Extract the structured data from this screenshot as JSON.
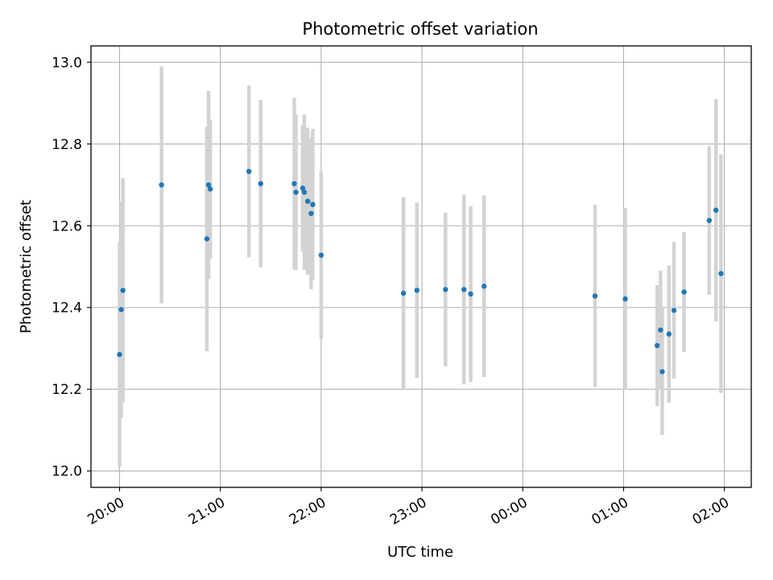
{
  "chart_data": {
    "type": "scatter",
    "title": "Photometric offset variation",
    "xlabel": "UTC time",
    "ylabel": "Photometric offset",
    "x_ticks": [
      "20:00",
      "21:00",
      "22:00",
      "23:00",
      "00:00",
      "01:00",
      "02:00"
    ],
    "y_ticks": [
      "12.0",
      "12.2",
      "12.4",
      "12.6",
      "12.8",
      "13.0"
    ],
    "xlim": [
      "19:43",
      "02:16"
    ],
    "ylim": [
      11.96,
      13.04
    ],
    "grid": true,
    "colors": {
      "points": "#1f77b4",
      "errorbars": "#d3d3d3",
      "grid": "#b0b0b0"
    },
    "points": [
      {
        "t": "20:00",
        "y": 12.285,
        "err": 0.275
      },
      {
        "t": "20:01",
        "y": 12.395,
        "err": 0.265
      },
      {
        "t": "20:02",
        "y": 12.442,
        "err": 0.275
      },
      {
        "t": "20:25",
        "y": 12.7,
        "err": 0.29
      },
      {
        "t": "20:52",
        "y": 12.568,
        "err": 0.275
      },
      {
        "t": "20:53",
        "y": 12.7,
        "err": 0.23
      },
      {
        "t": "20:54",
        "y": 12.69,
        "err": 0.17
      },
      {
        "t": "21:17",
        "y": 12.733,
        "err": 0.21
      },
      {
        "t": "21:24",
        "y": 12.703,
        "err": 0.205
      },
      {
        "t": "21:44",
        "y": 12.703,
        "err": 0.21
      },
      {
        "t": "21:45",
        "y": 12.682,
        "err": 0.19
      },
      {
        "t": "21:49",
        "y": 12.692,
        "err": 0.155
      },
      {
        "t": "21:50",
        "y": 12.682,
        "err": 0.19
      },
      {
        "t": "21:52",
        "y": 12.66,
        "err": 0.18
      },
      {
        "t": "21:54",
        "y": 12.63,
        "err": 0.185
      },
      {
        "t": "21:55",
        "y": 12.652,
        "err": 0.185
      },
      {
        "t": "22:00",
        "y": 12.528,
        "err": 0.205
      },
      {
        "t": "22:49",
        "y": 12.435,
        "err": 0.235
      },
      {
        "t": "22:57",
        "y": 12.442,
        "err": 0.215
      },
      {
        "t": "23:14",
        "y": 12.444,
        "err": 0.188
      },
      {
        "t": "23:25",
        "y": 12.444,
        "err": 0.232
      },
      {
        "t": "23:29",
        "y": 12.433,
        "err": 0.215
      },
      {
        "t": "23:37",
        "y": 12.452,
        "err": 0.222
      },
      {
        "t": "00:43",
        "y": 12.428,
        "err": 0.223
      },
      {
        "t": "01:01",
        "y": 12.421,
        "err": 0.222
      },
      {
        "t": "01:20",
        "y": 12.307,
        "err": 0.148
      },
      {
        "t": "01:22",
        "y": 12.345,
        "err": 0.145
      },
      {
        "t": "01:23",
        "y": 12.243,
        "err": 0.155
      },
      {
        "t": "01:27",
        "y": 12.335,
        "err": 0.168
      },
      {
        "t": "01:30",
        "y": 12.393,
        "err": 0.167
      },
      {
        "t": "01:36",
        "y": 12.438,
        "err": 0.147
      },
      {
        "t": "01:51",
        "y": 12.613,
        "err": 0.182
      },
      {
        "t": "01:55",
        "y": 12.638,
        "err": 0.272
      },
      {
        "t": "01:58",
        "y": 12.483,
        "err": 0.292
      }
    ]
  }
}
